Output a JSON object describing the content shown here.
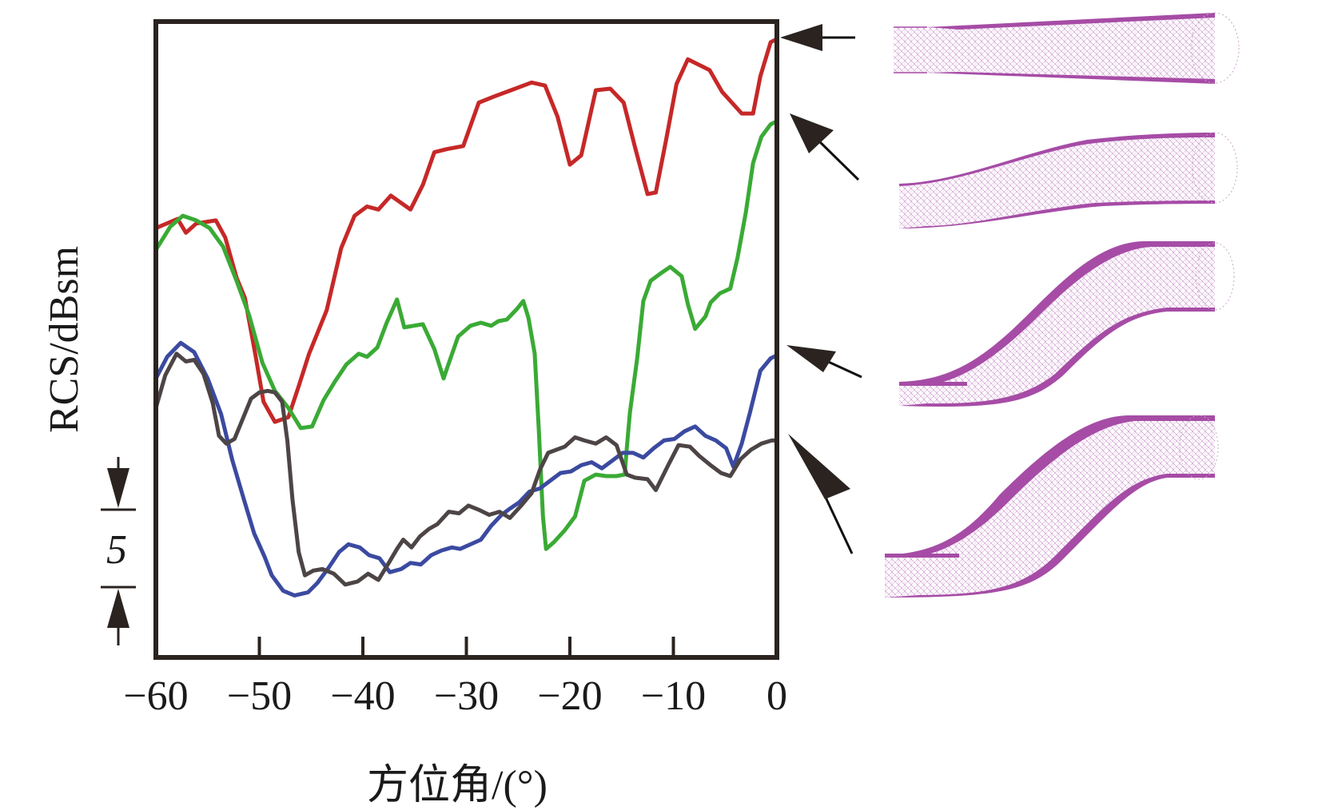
{
  "chart_data": {
    "type": "line",
    "title": "",
    "xlabel": "方位角/(°)",
    "ylabel": "RCS/dBsm",
    "xlim": [
      -60,
      0
    ],
    "ylim": [
      0,
      41
    ],
    "y_units_note": "relative dB (no absolute y tick labels shown); scale bar indicates 5 dB",
    "xticks": [
      -60,
      -50,
      -40,
      -30,
      -20,
      -10,
      0
    ],
    "xtick_labels": [
      "−60",
      "−50",
      "−40",
      "−30",
      "−20",
      "−10",
      "0"
    ],
    "scale_bar": {
      "label": "5",
      "value_db": 5,
      "bottom_db": 4.5
    },
    "grid": false,
    "series": [
      {
        "name": "straight-cone-inlet",
        "color": "#c62828",
        "x": [
          -60,
          -57.9,
          -57.1,
          -56.1,
          -54.2,
          -53.3,
          -52.2,
          -51.4,
          -50.4,
          -49.6,
          -48.5,
          -47.2,
          -46.2,
          -45.2,
          -43.5,
          -42.1,
          -40.8,
          -39.6,
          -38.5,
          -37.3,
          -35.4,
          -34.2,
          -33.1,
          -31.9,
          -30.3,
          -28.8,
          -27.3,
          -25.7,
          -23.7,
          -22.4,
          -21.2,
          -20.0,
          -18.9,
          -17.5,
          -16.1,
          -14.8,
          -13.7,
          -12.5,
          -11.7,
          -10.7,
          -9.7,
          -8.6,
          -6.5,
          -5.3,
          -3.4,
          -2.3,
          -1.6,
          -0.6,
          0
        ],
        "values": [
          27.7,
          28.3,
          27.4,
          28.0,
          28.2,
          27.1,
          24.5,
          23.2,
          19.6,
          16.5,
          15.2,
          15.5,
          17.5,
          19.6,
          22.4,
          26.4,
          28.5,
          29.1,
          28.9,
          29.8,
          28.9,
          30.5,
          32.6,
          32.8,
          33.0,
          35.8,
          36.2,
          36.6,
          37.1,
          36.9,
          34.9,
          31.8,
          32.4,
          36.6,
          36.7,
          35.8,
          32.9,
          29.9,
          30.0,
          33.4,
          37.0,
          38.6,
          37.9,
          36.5,
          35.1,
          35.1,
          37.5,
          39.7,
          39.9
        ]
      },
      {
        "name": "single-s-bend-inlet",
        "color": "#3aaa35",
        "x": [
          -60,
          -58.6,
          -57.4,
          -56.1,
          -54.8,
          -53.5,
          -52.2,
          -51.0,
          -49.7,
          -48.5,
          -47.2,
          -46.0,
          -44.9,
          -43.8,
          -42.7,
          -41.6,
          -40.4,
          -39.6,
          -38.6,
          -37.7,
          -36.7,
          -36.0,
          -35.1,
          -34.2,
          -33.1,
          -32.2,
          -31.9,
          -30.8,
          -29.6,
          -28.6,
          -27.6,
          -26.9,
          -26.1,
          -25.1,
          -24.5,
          -24.0,
          -23.4,
          -23.0,
          -22.6,
          -22.3,
          -21.6,
          -20.5,
          -19.5,
          -18.6,
          -17.5,
          -16.5,
          -15.5,
          -14.7,
          -14.5,
          -14.2,
          -13.5,
          -12.9,
          -12.2,
          -11.2,
          -10.3,
          -9.2,
          -8.6,
          -7.9,
          -6.9,
          -6.4,
          -5.5,
          -4.5,
          -3.8,
          -3.0,
          -2.3,
          -1.5,
          -0.6,
          0
        ],
        "values": [
          26.3,
          27.8,
          28.5,
          28.2,
          27.7,
          26.5,
          24.3,
          22.1,
          19.0,
          17.2,
          16.1,
          14.8,
          14.9,
          16.6,
          17.8,
          18.9,
          19.6,
          19.4,
          20.0,
          21.6,
          23.1,
          21.3,
          21.4,
          21.5,
          19.9,
          18.0,
          18.6,
          20.7,
          21.4,
          21.6,
          21.4,
          21.7,
          21.8,
          22.5,
          23.0,
          21.9,
          19.6,
          14.6,
          9.1,
          7.0,
          7.4,
          8.2,
          9.1,
          11.4,
          11.8,
          11.7,
          11.7,
          11.8,
          13.5,
          15.8,
          19.3,
          23.0,
          24.3,
          24.8,
          25.2,
          24.6,
          22.8,
          21.2,
          22.0,
          22.9,
          23.5,
          23.8,
          25.8,
          28.7,
          31.9,
          33.6,
          34.4,
          34.6
        ]
      },
      {
        "name": "double-s-bend-inlet-1",
        "color": "#3b4aa0",
        "x": [
          -60,
          -58.9,
          -57.6,
          -56.3,
          -55.0,
          -53.7,
          -52.6,
          -51.5,
          -50.5,
          -49.5,
          -48.8,
          -47.7,
          -46.6,
          -45.3,
          -44.4,
          -43.3,
          -42.3,
          -41.4,
          -40.3,
          -39.4,
          -38.4,
          -37.4,
          -36.3,
          -35.4,
          -34.4,
          -33.4,
          -32.4,
          -31.4,
          -30.6,
          -29.6,
          -28.6,
          -27.6,
          -26.6,
          -25.8,
          -24.9,
          -23.9,
          -22.9,
          -21.9,
          -20.9,
          -19.9,
          -18.9,
          -17.9,
          -16.9,
          -15.9,
          -14.9,
          -13.9,
          -12.9,
          -11.9,
          -10.9,
          -9.9,
          -8.9,
          -7.9,
          -6.9,
          -5.9,
          -4.9,
          -4.2,
          -3.4,
          -2.6,
          -1.6,
          -0.6,
          0
        ],
        "values": [
          18.0,
          19.4,
          20.3,
          19.7,
          18.0,
          15.7,
          12.7,
          10.2,
          8.0,
          6.5,
          5.3,
          4.3,
          4.0,
          4.2,
          4.8,
          5.8,
          6.8,
          7.3,
          7.1,
          6.6,
          6.4,
          5.5,
          5.7,
          6.1,
          6.0,
          6.6,
          6.9,
          7.1,
          7.0,
          7.3,
          7.6,
          8.5,
          9.2,
          9.6,
          10.0,
          10.7,
          10.9,
          11.4,
          11.9,
          12.0,
          12.4,
          12.6,
          12.2,
          12.7,
          13.2,
          13.2,
          12.9,
          13.5,
          14.0,
          14.1,
          14.6,
          14.9,
          14.3,
          14.0,
          13.5,
          12.3,
          13.8,
          15.8,
          18.5,
          19.3,
          19.5
        ]
      },
      {
        "name": "double-s-bend-inlet-2",
        "color": "#4d4545",
        "x": [
          -60,
          -59.1,
          -58.0,
          -57.1,
          -56.3,
          -55.4,
          -54.5,
          -53.9,
          -53.2,
          -52.4,
          -51.6,
          -50.8,
          -50.0,
          -49.2,
          -48.5,
          -47.8,
          -47.3,
          -46.8,
          -46.2,
          -45.6,
          -44.8,
          -43.9,
          -42.8,
          -41.7,
          -40.5,
          -39.5,
          -38.5,
          -37.5,
          -36.7,
          -36.1,
          -35.3,
          -34.5,
          -33.6,
          -32.8,
          -31.7,
          -30.7,
          -29.8,
          -28.7,
          -27.8,
          -26.8,
          -25.8,
          -24.7,
          -23.7,
          -22.9,
          -22.1,
          -21.3,
          -20.5,
          -19.5,
          -18.6,
          -17.5,
          -16.5,
          -15.5,
          -14.5,
          -13.7,
          -12.5,
          -11.7,
          -10.5,
          -9.5,
          -8.4,
          -7.5,
          -6.4,
          -5.4,
          -4.5,
          -3.5,
          -2.5,
          -1.5,
          -0.5,
          0
        ],
        "values": [
          16.1,
          18.2,
          19.6,
          19.1,
          19.2,
          18.3,
          16.4,
          14.3,
          13.8,
          14.1,
          15.4,
          16.7,
          17.1,
          17.2,
          17.1,
          16.5,
          14.0,
          10.2,
          6.8,
          5.3,
          5.6,
          5.7,
          5.4,
          4.7,
          4.9,
          5.4,
          5.0,
          6.1,
          7.0,
          7.6,
          7.1,
          7.8,
          8.3,
          8.6,
          9.4,
          9.3,
          9.8,
          9.5,
          9.2,
          9.4,
          9.0,
          9.8,
          10.6,
          12.1,
          13.2,
          13.4,
          13.6,
          14.2,
          14.0,
          13.8,
          14.2,
          13.7,
          11.8,
          11.6,
          11.5,
          10.8,
          12.4,
          13.7,
          13.6,
          13.0,
          12.4,
          11.9,
          11.7,
          12.8,
          13.4,
          13.8,
          14.0,
          14.0
        ]
      }
    ],
    "annotations": [
      {
        "type": "arrow",
        "target_series": "straight-cone-inlet",
        "points_to_x": 0
      },
      {
        "type": "arrow",
        "target_series": "single-s-bend-inlet",
        "points_to_x": 0
      },
      {
        "type": "arrow",
        "target_series": "double-s-bend-inlet-1",
        "points_to_x": 0
      },
      {
        "type": "arrow",
        "target_series": "double-s-bend-inlet-2",
        "points_to_x": 0
      }
    ]
  },
  "geometry_images": [
    {
      "name": "straight-cone-inlet-mesh",
      "shape": "straight",
      "color": "#a64ca6"
    },
    {
      "name": "single-s-bend-inlet-mesh",
      "shape": "slight-bend",
      "color": "#a64ca6"
    },
    {
      "name": "double-s-bend-inlet-mesh-1",
      "shape": "s-bend",
      "color": "#a64ca6"
    },
    {
      "name": "double-s-bend-inlet-mesh-2",
      "shape": "s-bend-large",
      "color": "#a64ca6"
    }
  ]
}
